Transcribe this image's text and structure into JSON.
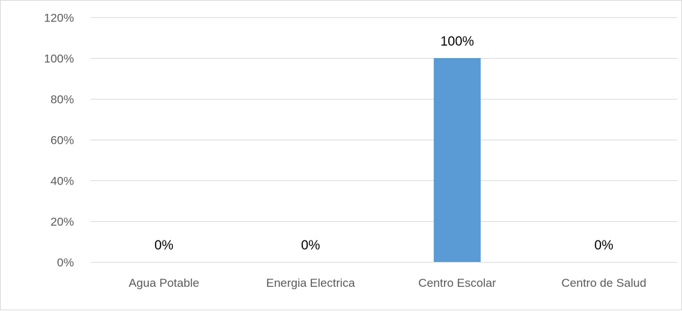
{
  "chart_data": {
    "type": "bar",
    "title": "",
    "xlabel": "",
    "ylabel": "",
    "categories": [
      "Agua Potable",
      "Energia Electrica",
      "Centro Escolar",
      "Centro de Salud"
    ],
    "values": [
      0,
      0,
      100,
      0
    ],
    "data_labels": [
      "0%",
      "0%",
      "100%",
      "0%"
    ],
    "ylim": [
      0,
      120
    ],
    "y_ticks": [
      0,
      20,
      40,
      60,
      80,
      100,
      120
    ],
    "y_tick_labels": [
      "0%",
      "20%",
      "40%",
      "60%",
      "80%",
      "100%",
      "120%"
    ],
    "grid": true,
    "legend": "none",
    "colors": {
      "bar": "#5b9bd5",
      "grid": "#d9d9d9",
      "axis": "#d9d9d9",
      "tick_text": "#595959",
      "data_label_text": "#000000"
    }
  }
}
